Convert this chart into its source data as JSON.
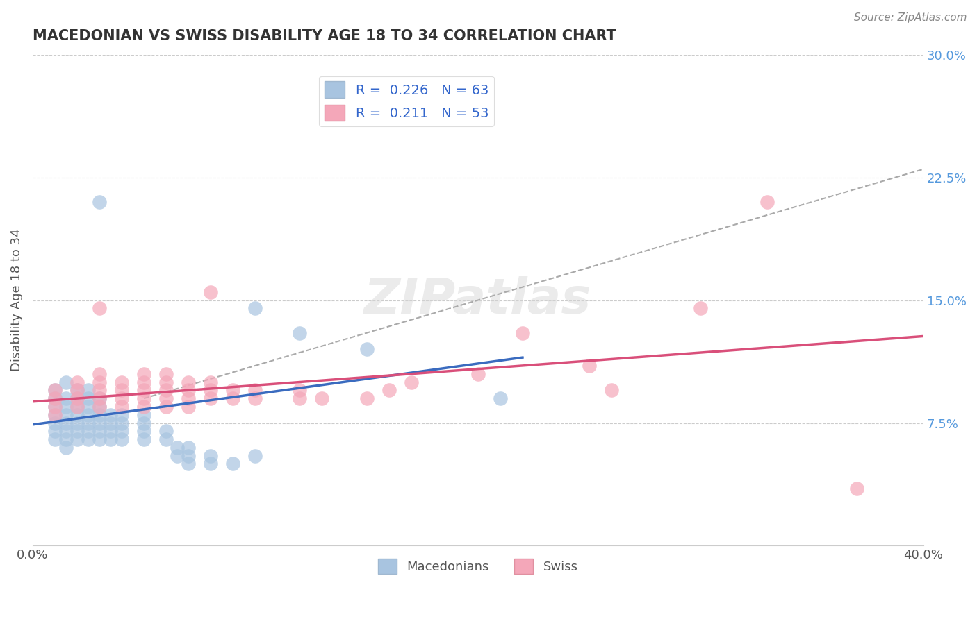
{
  "title": "MACEDONIAN VS SWISS DISABILITY AGE 18 TO 34 CORRELATION CHART",
  "source_text": "Source: ZipAtlas.com",
  "ylabel": "Disability Age 18 to 34",
  "xlim": [
    0.0,
    0.4
  ],
  "ylim": [
    0.0,
    0.3
  ],
  "xtick_vals": [
    0.0,
    0.1,
    0.2,
    0.3,
    0.4
  ],
  "xtick_labels": [
    "0.0%",
    "",
    "",
    "",
    "40.0%"
  ],
  "ytick_labels_right": [
    "7.5%",
    "15.0%",
    "22.5%",
    "30.0%"
  ],
  "yticks_right": [
    0.075,
    0.15,
    0.225,
    0.3
  ],
  "macedonian_color": "#a8c4e0",
  "swiss_color": "#f4a7b9",
  "mac_line_color": "#3a6bbf",
  "swiss_line_color": "#d94f7a",
  "dashed_line_color": "#aaaaaa",
  "macedonian_R": 0.226,
  "macedonian_N": 63,
  "swiss_R": 0.211,
  "swiss_N": 53,
  "watermark": "ZIPatlas",
  "macedonian_scatter": [
    [
      0.01,
      0.065
    ],
    [
      0.01,
      0.07
    ],
    [
      0.01,
      0.075
    ],
    [
      0.01,
      0.08
    ],
    [
      0.01,
      0.085
    ],
    [
      0.01,
      0.09
    ],
    [
      0.01,
      0.095
    ],
    [
      0.015,
      0.06
    ],
    [
      0.015,
      0.065
    ],
    [
      0.015,
      0.07
    ],
    [
      0.015,
      0.075
    ],
    [
      0.015,
      0.08
    ],
    [
      0.015,
      0.085
    ],
    [
      0.015,
      0.09
    ],
    [
      0.015,
      0.1
    ],
    [
      0.02,
      0.065
    ],
    [
      0.02,
      0.07
    ],
    [
      0.02,
      0.075
    ],
    [
      0.02,
      0.08
    ],
    [
      0.02,
      0.085
    ],
    [
      0.02,
      0.09
    ],
    [
      0.02,
      0.095
    ],
    [
      0.025,
      0.065
    ],
    [
      0.025,
      0.07
    ],
    [
      0.025,
      0.075
    ],
    [
      0.025,
      0.08
    ],
    [
      0.025,
      0.085
    ],
    [
      0.025,
      0.09
    ],
    [
      0.025,
      0.095
    ],
    [
      0.03,
      0.065
    ],
    [
      0.03,
      0.07
    ],
    [
      0.03,
      0.075
    ],
    [
      0.03,
      0.08
    ],
    [
      0.03,
      0.085
    ],
    [
      0.03,
      0.09
    ],
    [
      0.035,
      0.065
    ],
    [
      0.035,
      0.07
    ],
    [
      0.035,
      0.075
    ],
    [
      0.035,
      0.08
    ],
    [
      0.04,
      0.065
    ],
    [
      0.04,
      0.07
    ],
    [
      0.04,
      0.075
    ],
    [
      0.04,
      0.08
    ],
    [
      0.05,
      0.065
    ],
    [
      0.05,
      0.07
    ],
    [
      0.05,
      0.075
    ],
    [
      0.05,
      0.08
    ],
    [
      0.06,
      0.065
    ],
    [
      0.06,
      0.07
    ],
    [
      0.065,
      0.055
    ],
    [
      0.065,
      0.06
    ],
    [
      0.07,
      0.05
    ],
    [
      0.07,
      0.055
    ],
    [
      0.07,
      0.06
    ],
    [
      0.08,
      0.05
    ],
    [
      0.08,
      0.055
    ],
    [
      0.09,
      0.05
    ],
    [
      0.1,
      0.055
    ],
    [
      0.1,
      0.145
    ],
    [
      0.12,
      0.13
    ],
    [
      0.15,
      0.12
    ],
    [
      0.03,
      0.21
    ],
    [
      0.21,
      0.09
    ]
  ],
  "swiss_scatter": [
    [
      0.01,
      0.08
    ],
    [
      0.01,
      0.085
    ],
    [
      0.01,
      0.09
    ],
    [
      0.01,
      0.095
    ],
    [
      0.02,
      0.085
    ],
    [
      0.02,
      0.09
    ],
    [
      0.02,
      0.095
    ],
    [
      0.02,
      0.1
    ],
    [
      0.03,
      0.085
    ],
    [
      0.03,
      0.09
    ],
    [
      0.03,
      0.095
    ],
    [
      0.03,
      0.1
    ],
    [
      0.03,
      0.105
    ],
    [
      0.04,
      0.085
    ],
    [
      0.04,
      0.09
    ],
    [
      0.04,
      0.095
    ],
    [
      0.04,
      0.1
    ],
    [
      0.05,
      0.085
    ],
    [
      0.05,
      0.09
    ],
    [
      0.05,
      0.095
    ],
    [
      0.05,
      0.1
    ],
    [
      0.05,
      0.105
    ],
    [
      0.06,
      0.085
    ],
    [
      0.06,
      0.09
    ],
    [
      0.06,
      0.095
    ],
    [
      0.06,
      0.1
    ],
    [
      0.06,
      0.105
    ],
    [
      0.07,
      0.085
    ],
    [
      0.07,
      0.09
    ],
    [
      0.07,
      0.095
    ],
    [
      0.07,
      0.1
    ],
    [
      0.08,
      0.09
    ],
    [
      0.08,
      0.095
    ],
    [
      0.08,
      0.1
    ],
    [
      0.09,
      0.09
    ],
    [
      0.09,
      0.095
    ],
    [
      0.1,
      0.09
    ],
    [
      0.1,
      0.095
    ],
    [
      0.12,
      0.09
    ],
    [
      0.12,
      0.095
    ],
    [
      0.13,
      0.09
    ],
    [
      0.15,
      0.09
    ],
    [
      0.16,
      0.095
    ],
    [
      0.17,
      0.1
    ],
    [
      0.2,
      0.105
    ],
    [
      0.22,
      0.13
    ],
    [
      0.25,
      0.11
    ],
    [
      0.26,
      0.095
    ],
    [
      0.3,
      0.145
    ],
    [
      0.33,
      0.21
    ],
    [
      0.37,
      0.035
    ],
    [
      0.03,
      0.145
    ],
    [
      0.08,
      0.155
    ]
  ],
  "mac_line_x": [
    0.0,
    0.22
  ],
  "mac_line_y_start": 0.074,
  "mac_line_y_end": 0.115,
  "swiss_line_x": [
    0.0,
    0.4
  ],
  "swiss_line_y_start": 0.088,
  "swiss_line_y_end": 0.128,
  "dashed_line_x": [
    0.05,
    0.4
  ],
  "dashed_line_y_start": 0.09,
  "dashed_line_y_end": 0.23
}
